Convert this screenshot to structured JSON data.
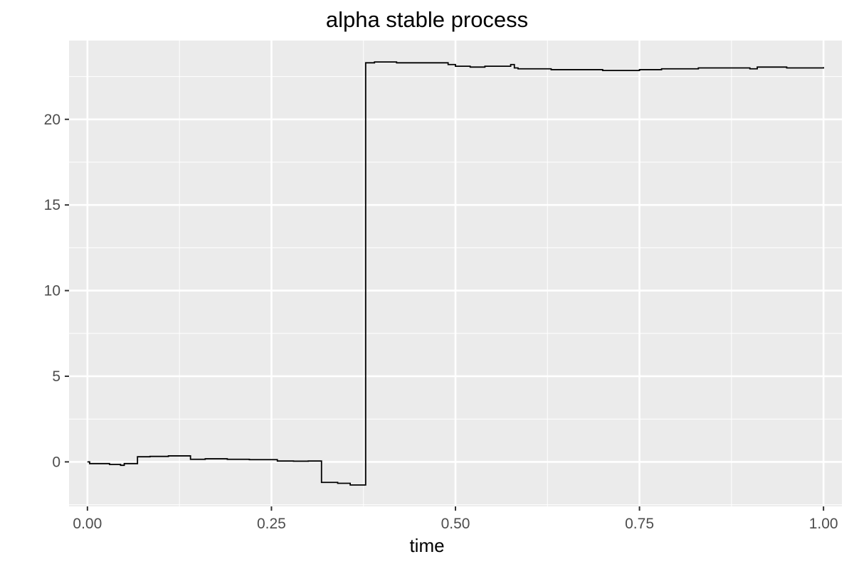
{
  "chart_data": {
    "type": "line",
    "title": "alpha stable process",
    "xlabel": "time",
    "ylabel": "",
    "xlim": [
      -0.025,
      1.025
    ],
    "ylim": [
      -2.6,
      24.6
    ],
    "x_ticks": [
      0.0,
      0.25,
      0.5,
      0.75,
      1.0
    ],
    "x_tick_labels": [
      "0.00",
      "0.25",
      "0.50",
      "0.75",
      "1.00"
    ],
    "y_ticks": [
      0,
      5,
      10,
      15,
      20
    ],
    "y_tick_labels": [
      "0",
      "5",
      "10",
      "15",
      "20"
    ],
    "grid": true,
    "legend": "none",
    "colors": {
      "panel": "#ebebeb",
      "grid": "#ffffff",
      "line": "#000000",
      "tick_text": "#4d4d4d"
    },
    "series": [
      {
        "step": "post",
        "x": [
          0.0,
          0.003,
          0.03,
          0.045,
          0.05,
          0.068,
          0.085,
          0.11,
          0.14,
          0.16,
          0.19,
          0.22,
          0.258,
          0.28,
          0.3,
          0.318,
          0.34,
          0.357,
          0.378,
          0.39,
          0.42,
          0.44,
          0.46,
          0.49,
          0.5,
          0.52,
          0.54,
          0.56,
          0.575,
          0.58,
          0.585,
          0.6,
          0.63,
          0.66,
          0.7,
          0.75,
          0.78,
          0.8,
          0.83,
          0.86,
          0.88,
          0.9,
          0.91,
          0.93,
          0.95,
          0.97,
          1.0
        ],
        "y": [
          0.0,
          -0.1,
          -0.15,
          -0.2,
          -0.1,
          0.3,
          0.32,
          0.35,
          0.15,
          0.18,
          0.15,
          0.13,
          0.05,
          0.04,
          0.05,
          -1.2,
          -1.25,
          -1.35,
          23.3,
          23.35,
          23.3,
          23.3,
          23.3,
          23.2,
          23.1,
          23.05,
          23.1,
          23.1,
          23.2,
          23.0,
          22.95,
          22.95,
          22.9,
          22.9,
          22.85,
          22.9,
          22.95,
          22.95,
          23.0,
          23.0,
          23.0,
          22.95,
          23.05,
          23.05,
          23.0,
          23.0,
          23.05
        ]
      }
    ]
  }
}
